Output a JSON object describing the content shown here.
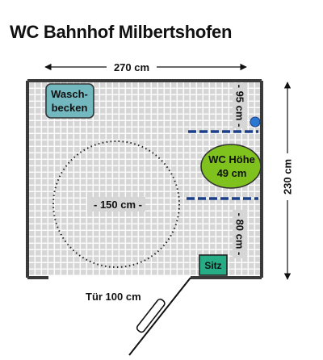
{
  "title": "WC Bahnhof Milbertshofen",
  "dimensions": {
    "width_label": "270 cm",
    "height_label": "230 cm",
    "turning_circle_label": "- 150 cm -",
    "upper_gap_label": "- 95 cm -",
    "lower_gap_label": "- 80 cm -",
    "door_label": "Tür 100 cm"
  },
  "fixtures": {
    "sink_line1": "Wasch-",
    "sink_line2": "becken",
    "wc_line1": "WC Höhe",
    "wc_line2": "49 cm",
    "seat_label": "Sitz"
  },
  "colors": {
    "floor_tile": "#d6d6d6",
    "grout": "#ffffff",
    "wall": "#3a3a3a",
    "sink": "#74b8bf",
    "wc": "#7fc21e",
    "seat": "#27ad86",
    "grab_bar": "#1c3f8a",
    "button": "#2a78d0"
  }
}
